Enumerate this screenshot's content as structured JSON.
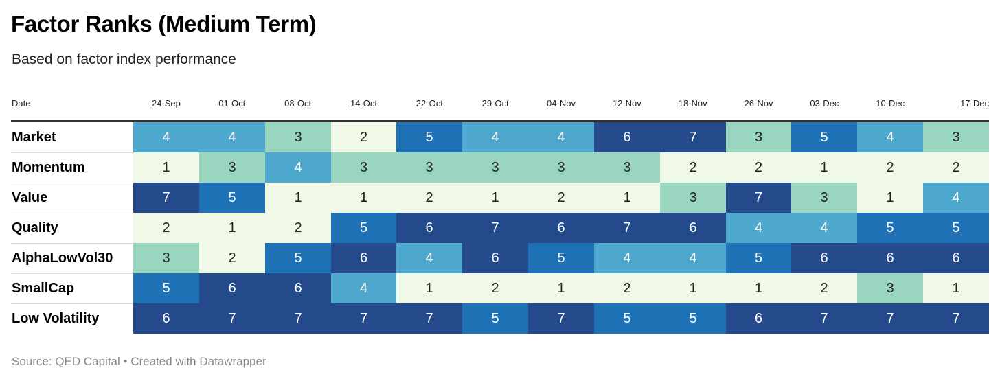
{
  "title": "Factor Ranks (Medium Term)",
  "subtitle": "Based on factor index performance",
  "source": "Source: QED Capital • Created with Datawrapper",
  "colors": {
    "1": "#f0f9e8",
    "2": "#f0f9e8",
    "3": "#9ad6bf",
    "4": "#4fa8cd",
    "5": "#1f72b5",
    "6": "#254a8c",
    "7": "#254a8c"
  },
  "chart_data": {
    "type": "heatmap",
    "title": "Factor Ranks (Medium Term)",
    "subtitle": "Based on factor index performance",
    "row_header": "Date",
    "columns": [
      "24-Sep",
      "01-Oct",
      "08-Oct",
      "14-Oct",
      "22-Oct",
      "29-Oct",
      "04-Nov",
      "12-Nov",
      "18-Nov",
      "26-Nov",
      "03-Dec",
      "10-Dec",
      "17-Dec"
    ],
    "rows": [
      {
        "name": "Market",
        "values": [
          4,
          4,
          3,
          2,
          5,
          4,
          4,
          6,
          7,
          3,
          5,
          4,
          3
        ]
      },
      {
        "name": "Momentum",
        "values": [
          1,
          3,
          4,
          3,
          3,
          3,
          3,
          3,
          2,
          2,
          1,
          2,
          2
        ]
      },
      {
        "name": "Value",
        "values": [
          7,
          5,
          1,
          1,
          2,
          1,
          2,
          1,
          3,
          7,
          3,
          1,
          4
        ]
      },
      {
        "name": "Quality",
        "values": [
          2,
          1,
          2,
          5,
          6,
          7,
          6,
          7,
          6,
          4,
          4,
          5,
          5
        ]
      },
      {
        "name": "AlphaLowVol30",
        "values": [
          3,
          2,
          5,
          6,
          4,
          6,
          5,
          4,
          4,
          5,
          6,
          6,
          6
        ]
      },
      {
        "name": "SmallCap",
        "values": [
          5,
          6,
          6,
          4,
          1,
          2,
          1,
          2,
          1,
          1,
          2,
          3,
          1
        ]
      },
      {
        "name": "Low Volatility",
        "values": [
          6,
          7,
          7,
          7,
          7,
          5,
          7,
          5,
          5,
          6,
          7,
          7,
          7
        ]
      }
    ]
  }
}
